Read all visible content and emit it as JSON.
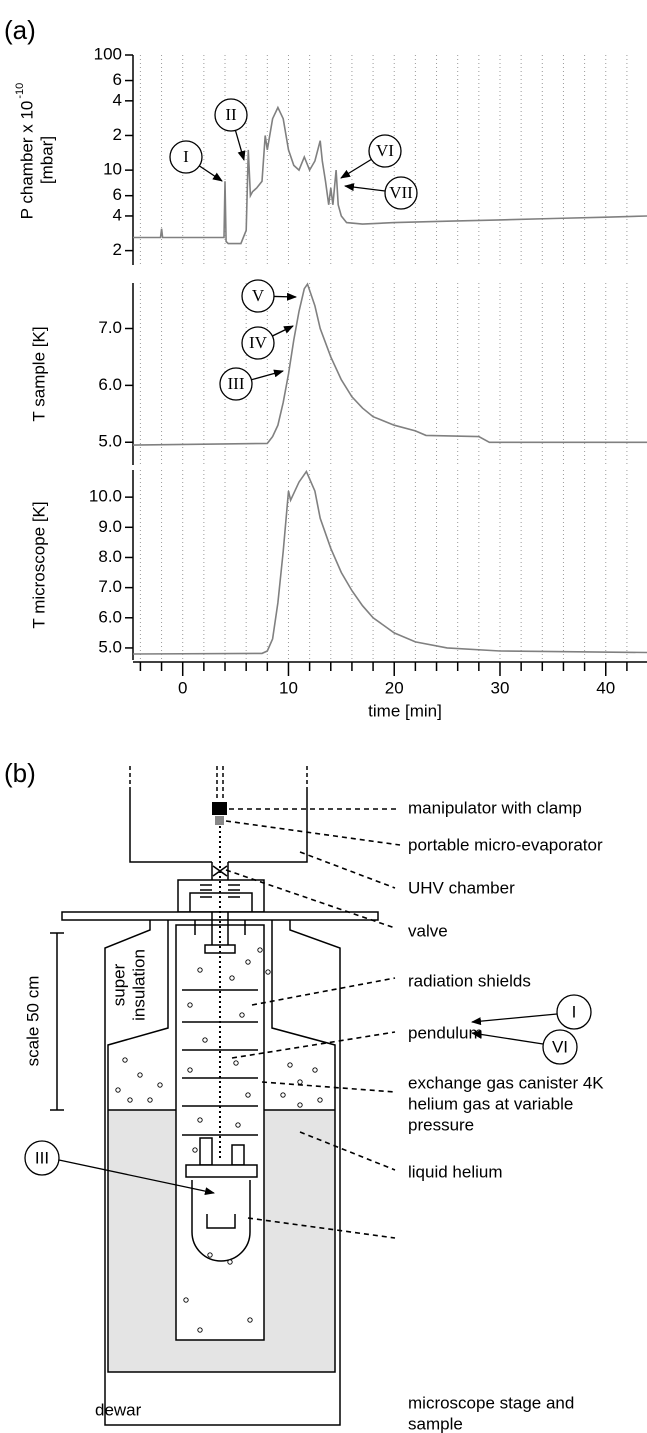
{
  "panel_labels": [
    "(a)",
    "(b)"
  ],
  "chart_data": [
    {
      "type": "line",
      "log_y": true,
      "ylabel": [
        "P chamber  x 10",
        "[mbar]"
      ],
      "ylabel_exponent": "-10",
      "xlim": [
        -4.7,
        43.9
      ],
      "ylim": [
        1.5,
        100
      ],
      "yticks": [
        2,
        4,
        6,
        10,
        {
          "value": 20,
          "label": "2"
        },
        {
          "value": 40,
          "label": "4"
        },
        {
          "value": 60,
          "label": "6"
        },
        100
      ],
      "grid": true,
      "color": "#808080",
      "x": [
        -4.7,
        -2.1,
        -2,
        -1.9,
        3.9,
        4,
        4.1,
        4.3,
        5.5,
        6,
        6.2,
        6.4,
        6.6,
        7,
        7.5,
        7.8,
        8,
        8.5,
        9,
        9.5,
        10,
        10.5,
        11,
        11.5,
        12,
        12.5,
        13,
        13.2,
        13.5,
        13.8,
        14,
        14.2,
        14.5,
        14.7,
        15,
        15.5,
        17,
        20,
        25,
        30,
        35,
        40,
        43.9
      ],
      "values": [
        2.6,
        2.6,
        3.1,
        2.6,
        2.6,
        8,
        2.4,
        2.3,
        2.3,
        3,
        15,
        6,
        6.5,
        7,
        8,
        20,
        15,
        28,
        35,
        28,
        15,
        11,
        10,
        13,
        10,
        12,
        18,
        12,
        8,
        5,
        7,
        5,
        10,
        5,
        4,
        3.5,
        3.4,
        3.5,
        3.6,
        3.7,
        3.8,
        3.9,
        4
      ],
      "annotations": [
        "I",
        "II",
        "VI",
        "VII"
      ]
    },
    {
      "type": "line",
      "ylabel": [
        "T sample [K]"
      ],
      "xlim": [
        -4.7,
        43.9
      ],
      "ylim": [
        4.6,
        7.8
      ],
      "yticks": [
        {
          "value": 5,
          "label": "5.0"
        },
        {
          "value": 6,
          "label": "6.0"
        },
        {
          "value": 7,
          "label": "7.0"
        }
      ],
      "grid": true,
      "color": "#808080",
      "x": [
        -4.7,
        8,
        8.5,
        9,
        9.5,
        10,
        10.5,
        11,
        11.5,
        11.8,
        12.5,
        13,
        14,
        15,
        16,
        17,
        18,
        20,
        22,
        23,
        28,
        29,
        43.9
      ],
      "values": [
        4.95,
        4.98,
        5.1,
        5.3,
        5.7,
        6.2,
        6.8,
        7.3,
        7.7,
        7.78,
        7.4,
        7.0,
        6.5,
        6.1,
        5.8,
        5.6,
        5.45,
        5.3,
        5.2,
        5.12,
        5.1,
        5.0,
        5.0
      ],
      "annotations": [
        "V",
        "IV",
        "III"
      ]
    },
    {
      "type": "line",
      "ylabel": [
        "T microscope [K]"
      ],
      "xlabel": "time [min]",
      "xlim": [
        -4.7,
        43.9
      ],
      "ylim": [
        4.6,
        10.9
      ],
      "yticks": [
        {
          "value": 5,
          "label": "5.0"
        },
        {
          "value": 6,
          "label": "6.0"
        },
        {
          "value": 7,
          "label": "7.0"
        },
        {
          "value": 8,
          "label": "8.0"
        },
        {
          "value": 9,
          "label": "9.0"
        },
        {
          "value": 10,
          "label": "10.0"
        }
      ],
      "xticks": [
        0,
        10,
        20,
        30,
        40
      ],
      "xminorticks": [
        -4,
        -2,
        2,
        4,
        6,
        8,
        12,
        14,
        16,
        18,
        22,
        24,
        26,
        28,
        32,
        34,
        36,
        38,
        42
      ],
      "grid": true,
      "color": "#808080",
      "x": [
        -4.7,
        7.5,
        8,
        8.5,
        9,
        9.5,
        10,
        10.2,
        11,
        11.7,
        12.5,
        13,
        14,
        15,
        16,
        17,
        18,
        20,
        22,
        25,
        30,
        43.9
      ],
      "values": [
        4.8,
        4.82,
        4.9,
        5.3,
        6.5,
        8.2,
        10.2,
        9.9,
        10.5,
        10.85,
        10.2,
        9.3,
        8.3,
        7.5,
        6.9,
        6.4,
        6.0,
        5.5,
        5.2,
        5.0,
        4.9,
        4.85
      ]
    }
  ],
  "diagram": {
    "labels": [
      "manipulator with clamp",
      "portable micro-evaporator",
      "UHV chamber",
      "valve",
      "radiation shields",
      "pendulum",
      "exchange gas canister 4K",
      "helium gas at variable",
      "pressure",
      "liquid helium",
      "microscope stage and",
      "sample"
    ],
    "insulation": [
      "super",
      "insulation"
    ],
    "scale": "scale 50 cm",
    "dewar": "dewar",
    "callouts": [
      "I",
      "VI",
      "III"
    ]
  }
}
